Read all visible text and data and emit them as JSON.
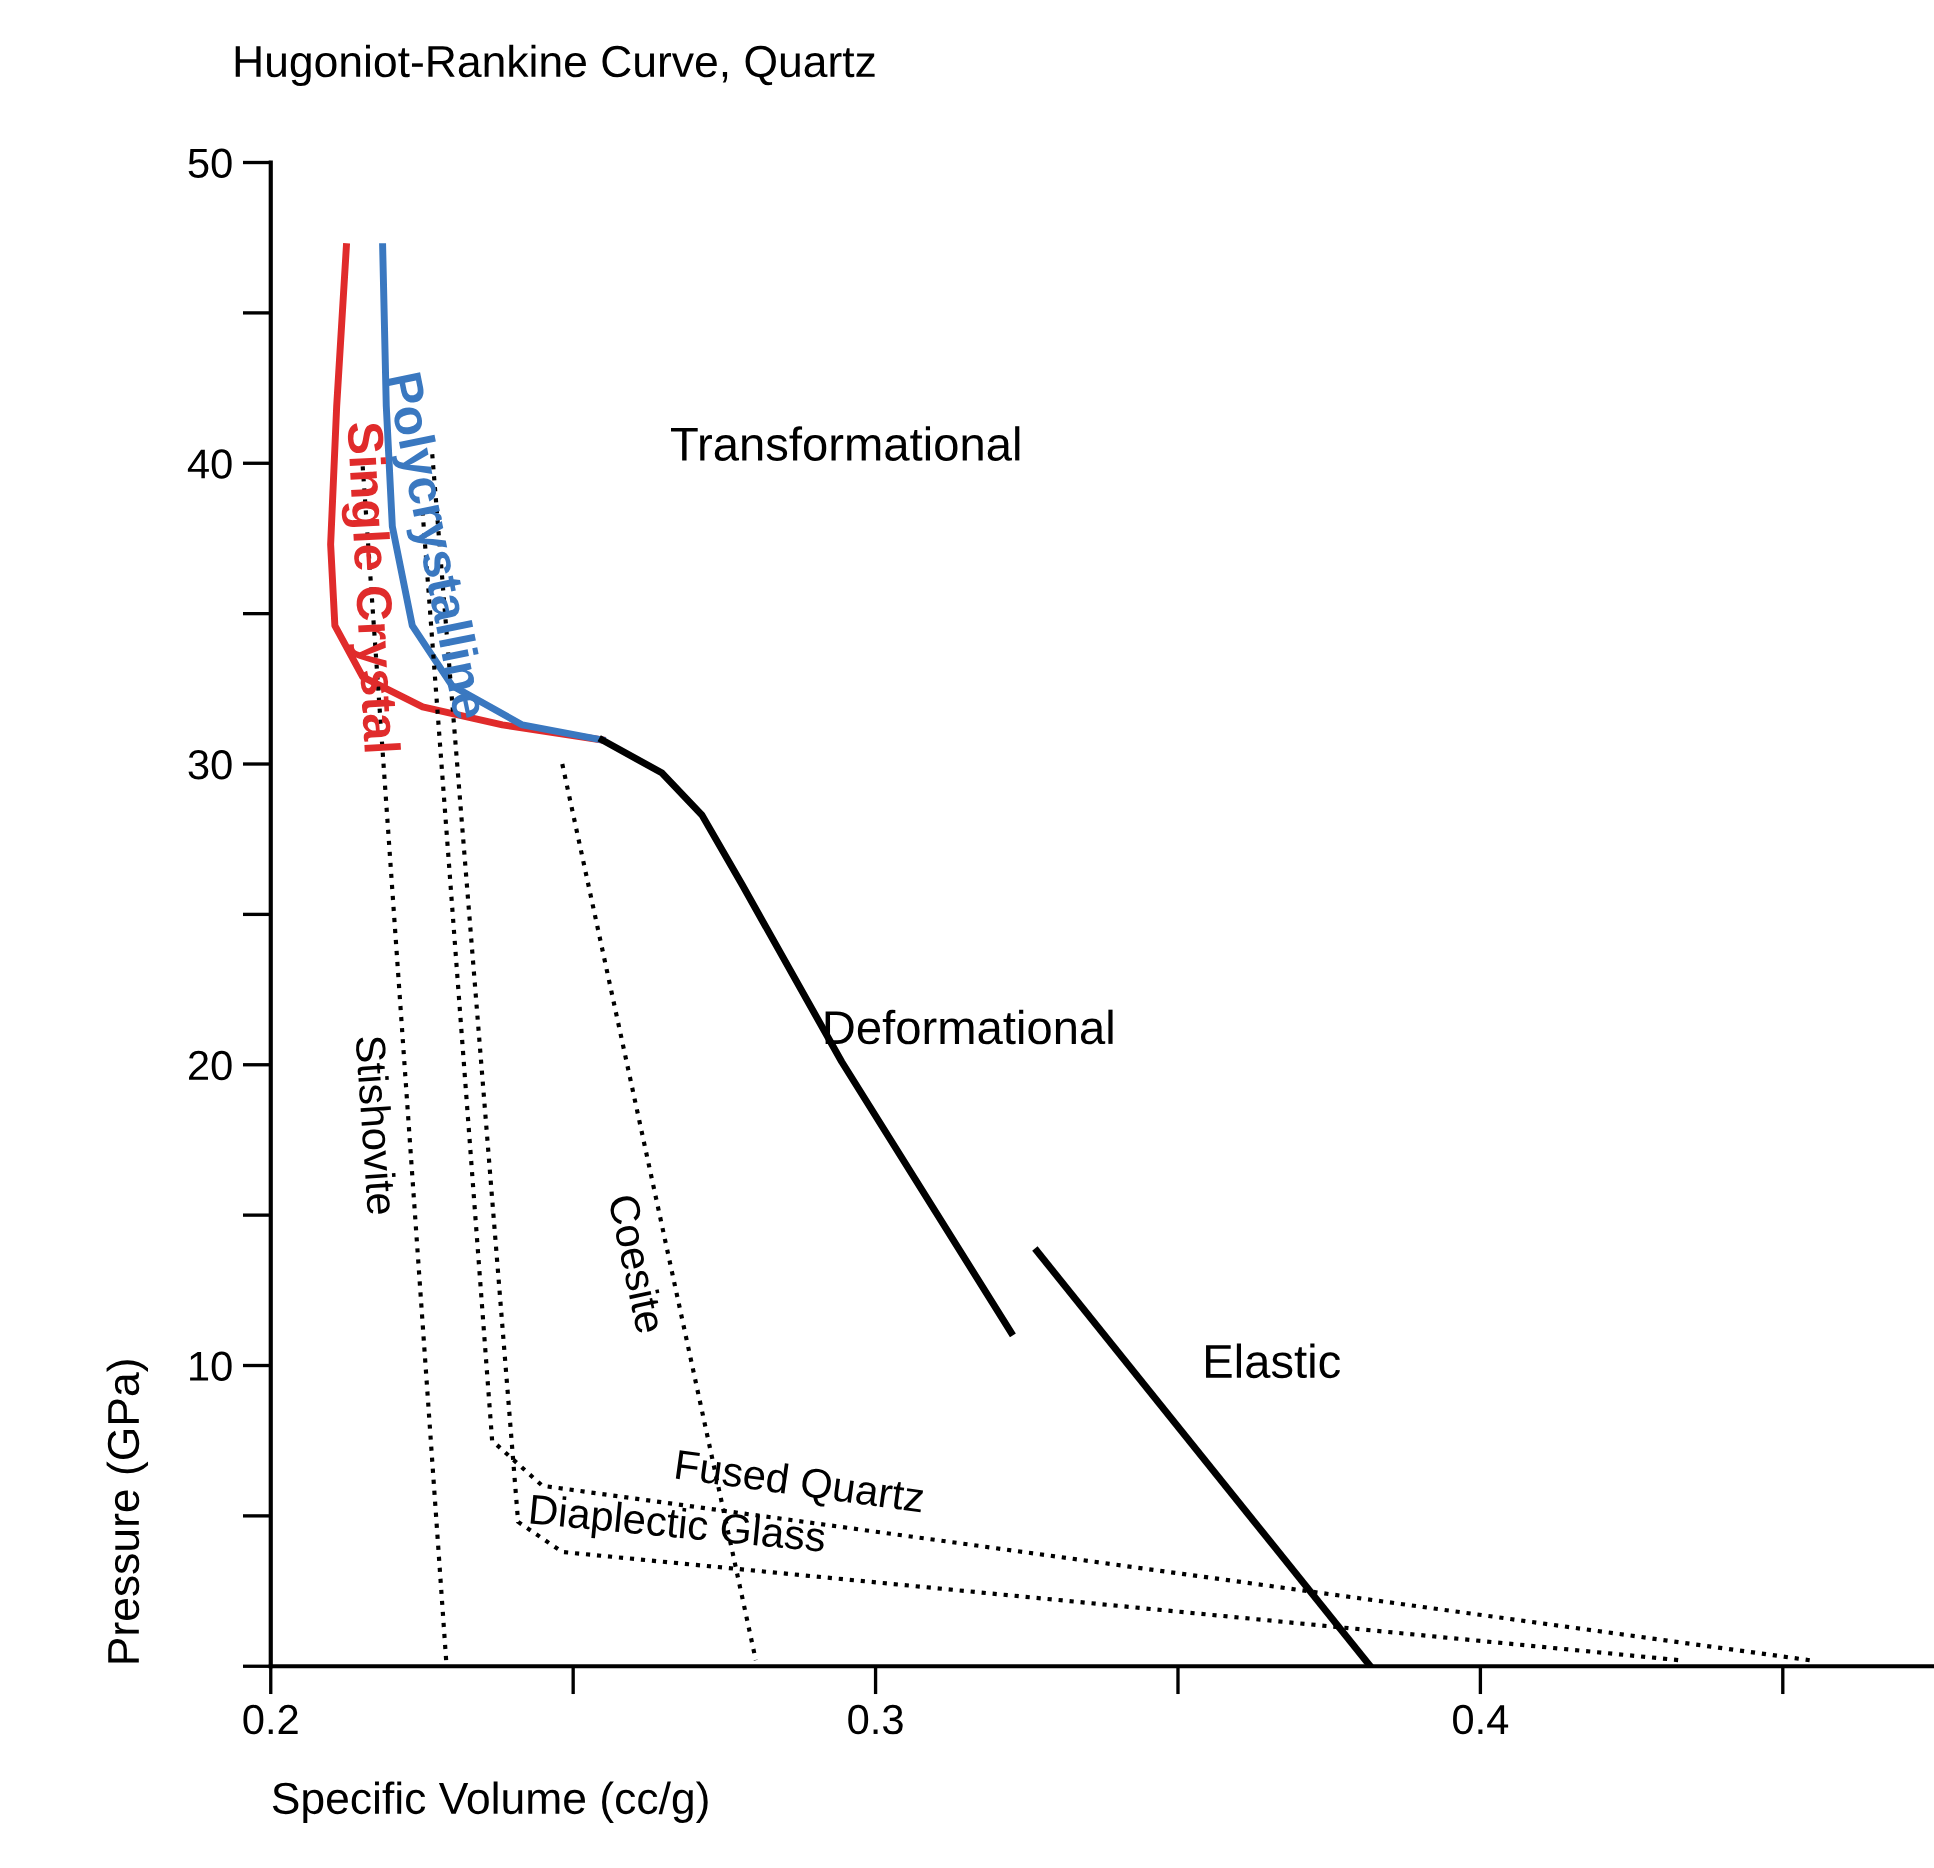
{
  "chart_data": {
    "type": "line",
    "title": "Hugoniot-Rankine Curve, Quartz",
    "xlabel": "Specific Volume (cc/g)",
    "ylabel": "Pressure (GPa)",
    "xlim": [
      0.2,
      0.475
    ],
    "ylim": [
      0,
      50
    ],
    "xticks": [
      0.2,
      {
        "value": 0.25,
        "label": null
      },
      0.3,
      {
        "value": 0.35,
        "label": null
      },
      0.4,
      {
        "value": 0.45,
        "label": null
      }
    ],
    "yticks": [
      {
        "value": 0,
        "label": null
      },
      {
        "value": 5,
        "label": null
      },
      10,
      {
        "value": 15,
        "label": null
      },
      20,
      {
        "value": 25,
        "label": null
      },
      30,
      {
        "value": 35,
        "label": null
      },
      40,
      {
        "value": 45,
        "label": null
      },
      50
    ],
    "grid": false,
    "legend": false,
    "series": [
      {
        "name": "Single Crystal",
        "color": "#e02b2b",
        "x": [
          0.2125,
          0.2109,
          0.2099,
          0.2106,
          0.2152,
          0.2251,
          0.2383,
          0.2548
        ],
        "values": [
          47.2,
          41.9,
          37.3,
          34.6,
          32.9,
          31.9,
          31.3,
          30.8
        ]
      },
      {
        "name": "Polycrystalline",
        "color": "#3a78c0",
        "x": [
          0.2185,
          0.2191,
          0.2201,
          0.2234,
          0.23,
          0.2416,
          0.2548
        ],
        "values": [
          47.2,
          41.9,
          37.9,
          34.6,
          32.6,
          31.3,
          30.8
        ]
      },
      {
        "color": "#000000",
        "x": [
          0.2548,
          0.2647,
          0.2713,
          0.2779,
          0.2944,
          0.3224
        ],
        "values": [
          30.8,
          29.7,
          28.3,
          26.0,
          20.1,
          11.1
        ]
      },
      {
        "color": "#000000",
        "x": [
          0.3818,
          0.3267
        ],
        "values": [
          0,
          13.8
        ]
      },
      {
        "name": "Stishovite",
        "color": "#000000",
        "line_style": "dotted",
        "x": [
          0.2152,
          0.229
        ],
        "values": [
          39.9,
          0.2
        ]
      },
      {
        "name": "Coesite",
        "color": "#000000",
        "line_style": "dotted",
        "x": [
          0.2482,
          0.2802
        ],
        "values": [
          30.0,
          0.2
        ]
      },
      {
        "name": "Fused Quartz",
        "color": "#000000",
        "line_style": "dotted",
        "x": [
          0.2251,
          0.2366,
          0.2449,
          0.4545
        ],
        "values": [
          38.4,
          7.5,
          6.0,
          0.2
        ]
      },
      {
        "name": "Diaplectic Glass",
        "color": "#000000",
        "line_style": "dotted",
        "x": [
          0.2267,
          0.2409,
          0.2482,
          0.433
        ],
        "values": [
          40.3,
          4.8,
          3.8,
          0.2
        ]
      }
    ],
    "annotations": [
      "Transformational",
      {
        "text": "Deformational",
        "x": 0.2911,
        "y": 21.1
      },
      "Elastic"
    ]
  }
}
